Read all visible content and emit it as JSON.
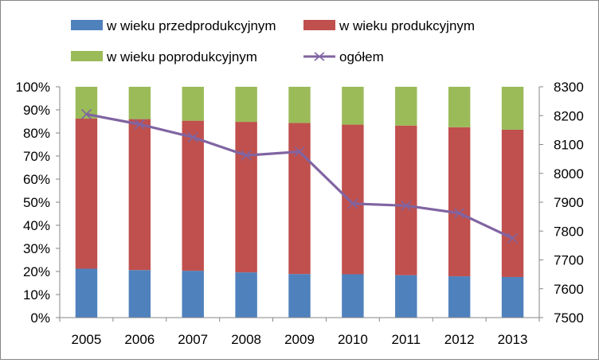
{
  "chart_data": {
    "type": "bar",
    "stacked": "percent",
    "categories": [
      "2005",
      "2006",
      "2007",
      "2008",
      "2009",
      "2010",
      "2011",
      "2012",
      "2013"
    ],
    "series": [
      {
        "name": "w wieku przedprodukcyjnym",
        "kind": "bar",
        "axis": "left",
        "color": "#4f81bd",
        "values": [
          21.2,
          20.6,
          20.3,
          19.6,
          18.9,
          18.8,
          18.4,
          17.9,
          17.6
        ]
      },
      {
        "name": "w wieku produkcyjnym",
        "kind": "bar",
        "axis": "left",
        "color": "#c0504d",
        "values": [
          65.0,
          65.4,
          65.0,
          65.2,
          65.4,
          64.8,
          64.8,
          64.6,
          63.8
        ]
      },
      {
        "name": "w wieku poprodukcyjnym",
        "kind": "bar",
        "axis": "left",
        "color": "#9bbb59",
        "values": [
          13.8,
          14.0,
          14.7,
          15.2,
          15.7,
          16.4,
          16.8,
          17.5,
          18.6
        ]
      },
      {
        "name": "ogółem",
        "kind": "line",
        "axis": "right",
        "color": "#8064a2",
        "marker": "x",
        "values": [
          8205,
          8170,
          8125,
          8062,
          8075,
          7895,
          7888,
          7862,
          7775
        ]
      }
    ],
    "y_left": {
      "min": 0,
      "max": 100,
      "step": 10,
      "tick_labels": [
        "0%",
        "10%",
        "20%",
        "30%",
        "40%",
        "50%",
        "60%",
        "70%",
        "80%",
        "90%",
        "100%"
      ]
    },
    "y_right": {
      "min": 7500,
      "max": 8300,
      "step": 100,
      "tick_labels": [
        "7500",
        "7600",
        "7700",
        "7800",
        "7900",
        "8000",
        "8100",
        "8200",
        "8300"
      ]
    },
    "legend": {
      "position": "top"
    },
    "grid": false
  }
}
